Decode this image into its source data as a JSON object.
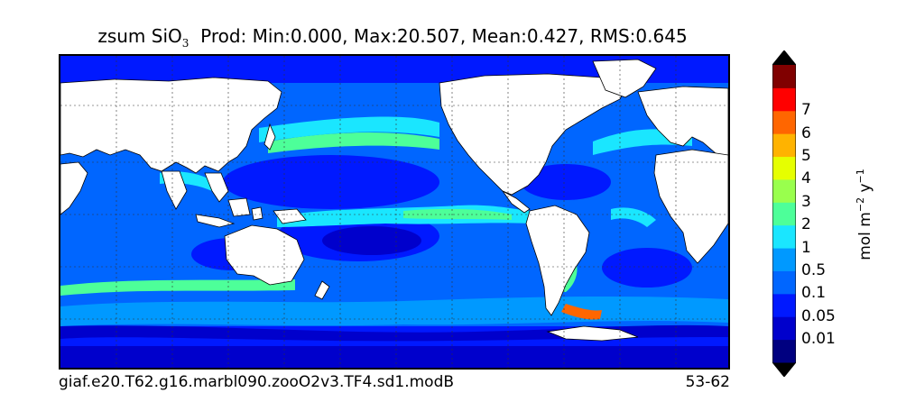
{
  "title": {
    "prefix": "zsum SiO",
    "subscript": "3",
    "stats": "Prod: Min:0.000, Max:20.507, Mean:0.427, RMS:0.645"
  },
  "footer": {
    "case_name": "giaf.e20.T62.g16.marbl090.zooO2v3.TF4.sd1.modB",
    "years": "53-62"
  },
  "colorbar": {
    "unit_base": "mol m",
    "unit_exp1": "−2",
    "unit_mid": " y",
    "unit_exp2": "−1",
    "levels": [
      {
        "label": "0.01",
        "color": "#0000cc"
      },
      {
        "label": "0.05",
        "color": "#0019ff"
      },
      {
        "label": "0.1",
        "color": "#0066ff"
      },
      {
        "label": "0.5",
        "color": "#0099ff"
      },
      {
        "label": "1",
        "color": "#1ae6ff"
      },
      {
        "label": "2",
        "color": "#4dff99"
      },
      {
        "label": "3",
        "color": "#99ff4d"
      },
      {
        "label": "4",
        "color": "#e6ff00"
      },
      {
        "label": "5",
        "color": "#ffb300"
      },
      {
        "label": "6",
        "color": "#ff6600"
      },
      {
        "label": "7",
        "color": "#ff0000"
      }
    ],
    "lowest_color": "#000080",
    "highest_color": "#800000",
    "over_under_color": "#000000"
  },
  "map": {
    "land_color": "#ffffff",
    "grid": "on"
  }
}
